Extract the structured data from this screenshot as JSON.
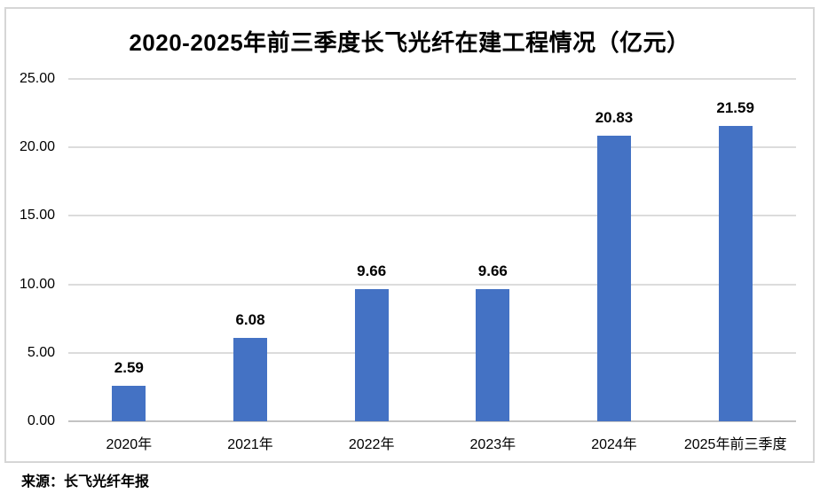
{
  "chart_data": {
    "type": "bar",
    "title": "2020-2025年前三季度长飞光纤在建工程情况（亿元）",
    "categories": [
      "2020年",
      "2021年",
      "2022年",
      "2023年",
      "2024年",
      "2025年前三季度"
    ],
    "values": [
      2.59,
      6.08,
      9.66,
      9.66,
      20.83,
      21.59
    ],
    "value_labels": [
      "2.59",
      "6.08",
      "9.66",
      "9.66",
      "20.83",
      "21.59"
    ],
    "y_ticks": [
      "0.00",
      "5.00",
      "10.00",
      "15.00",
      "20.00",
      "25.00"
    ],
    "ylim": [
      0,
      25
    ],
    "xlabel": "",
    "ylabel": "",
    "grid": true,
    "legend": "none",
    "bar_color": "#4472c4",
    "gridline_color": "#dcdcdc",
    "frame_border_color": "#d6d6d6"
  },
  "source_note": "来源：长飞光纤年报"
}
